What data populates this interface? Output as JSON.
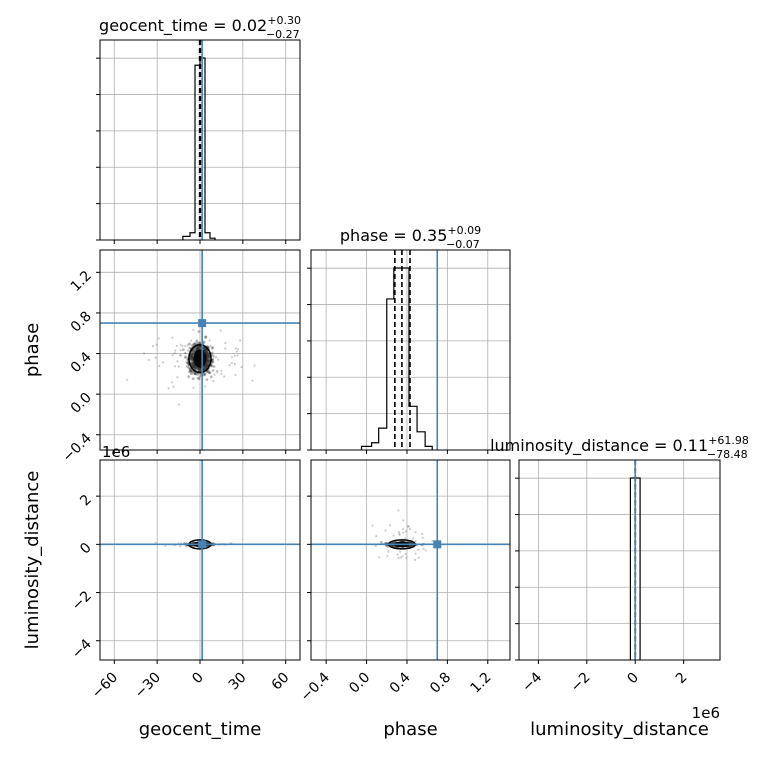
{
  "chart_data": {
    "type": "corner",
    "accent_color": "#4682b4",
    "point_color": "#333333",
    "parameters": [
      {
        "name": "geocent_time",
        "xlabel": "geocent_time",
        "ylabel": "",
        "title": "geocent_time = 0.02",
        "title_sup": "+0.30",
        "title_sub": "−0.27",
        "range": [
          -70,
          70
        ],
        "ticks": [
          -60,
          -30,
          0,
          30,
          60
        ],
        "tick_labels": [
          "−60",
          "−30",
          "0",
          "30",
          "60"
        ],
        "quantiles": [
          -0.25,
          0.02,
          0.32
        ],
        "truth": 1.5,
        "offset_text": "",
        "hist": {
          "edges": [
            -12,
            -7,
            -3.5,
            0,
            3.5,
            7,
            10.5
          ],
          "counts": [
            2,
            4,
            96,
            100,
            4,
            1
          ]
        }
      },
      {
        "name": "phase",
        "xlabel": "phase",
        "ylabel": "phase",
        "title": "phase = 0.35",
        "title_sup": "+0.09",
        "title_sub": "−0.07",
        "range": [
          -0.55,
          1.42
        ],
        "ticks": [
          -0.4,
          0.0,
          0.4,
          0.8,
          1.2
        ],
        "tick_labels": [
          "−0.4",
          "0.0",
          "0.4",
          "0.8",
          "1.2"
        ],
        "quantiles": [
          0.28,
          0.35,
          0.43
        ],
        "truth": 0.7,
        "offset_text": "",
        "hist": {
          "edges": [
            -0.05,
            0.05,
            0.12,
            0.2,
            0.27,
            0.34,
            0.42,
            0.5,
            0.58,
            0.65
          ],
          "counts": [
            2,
            4,
            12,
            83,
            100,
            100,
            24,
            10,
            2
          ]
        }
      },
      {
        "name": "luminosity_distance",
        "xlabel": "luminosity_distance",
        "ylabel": "luminosity_distance",
        "title": "luminosity_distance = 0.11",
        "title_sup": "+61.98",
        "title_sub": "−78.48",
        "range": [
          -4.8,
          3.5
        ],
        "ticks": [
          -4,
          -2,
          0,
          2
        ],
        "tick_labels": [
          "−4",
          "−2",
          "0",
          "2"
        ],
        "quantiles": [
          -7.85e-05,
          1e-07,
          6.2e-05
        ],
        "truth": 0.0,
        "offset_text": "1e6",
        "hist": {
          "edges": [
            -0.2,
            0.2
          ],
          "counts": [
            100
          ]
        }
      }
    ],
    "scatter": [
      {
        "x": 0,
        "y": 1,
        "center": [
          0,
          0.35
        ],
        "spread": [
          3.5,
          0.07
        ],
        "wide_spread": [
          18,
          0.12
        ],
        "n": 900
      },
      {
        "x": 0,
        "y": 2,
        "center": [
          0,
          0
        ],
        "spread": [
          3.5,
          0.02
        ],
        "wide_spread": [
          12,
          0.04
        ],
        "n": 500
      },
      {
        "x": 1,
        "y": 2,
        "center": [
          0.35,
          0
        ],
        "spread": [
          0.06,
          0.04
        ],
        "wide_spread": [
          0.12,
          0.5
        ],
        "n": 500
      }
    ]
  }
}
